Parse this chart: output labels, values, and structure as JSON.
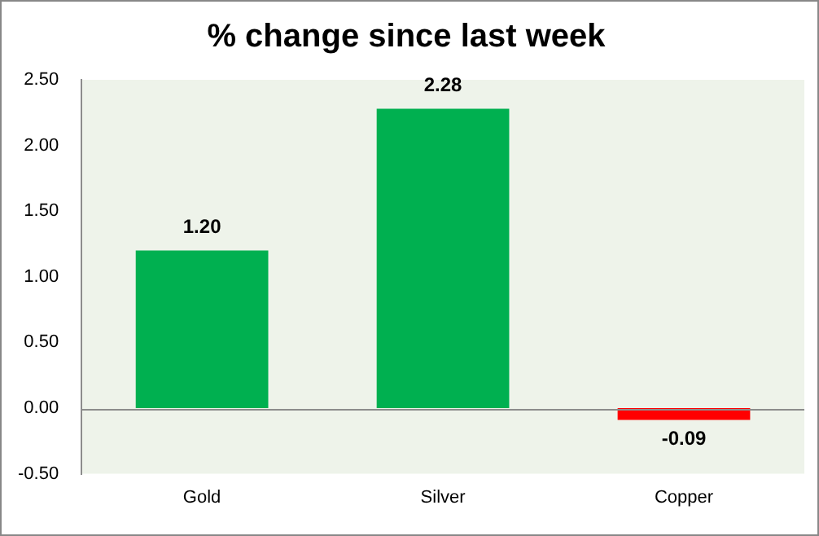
{
  "chart_data": {
    "type": "bar",
    "title": "% change since last week",
    "categories": [
      "Gold",
      "Silver",
      "Copper"
    ],
    "values": [
      1.2,
      2.28,
      -0.09
    ],
    "colors": [
      "#00b050",
      "#00b050",
      "#ff0000"
    ],
    "value_labels": [
      "1.20",
      "2.28",
      "-0.09"
    ],
    "ylim": [
      -0.5,
      2.5
    ],
    "yticks": [
      {
        "value": -0.5,
        "label": "-0.50"
      },
      {
        "value": 0,
        "label": "0.00"
      },
      {
        "value": 0.5,
        "label": "0.50"
      },
      {
        "value": 1,
        "label": "1.00"
      },
      {
        "value": 1.5,
        "label": "1.50"
      },
      {
        "value": 2,
        "label": "2.00"
      },
      {
        "value": 2.5,
        "label": "2.50"
      }
    ],
    "ref_lines": [
      {
        "axis": "y",
        "value": 0,
        "color": "#8c8c8c"
      }
    ],
    "grid": false,
    "legend": false
  }
}
